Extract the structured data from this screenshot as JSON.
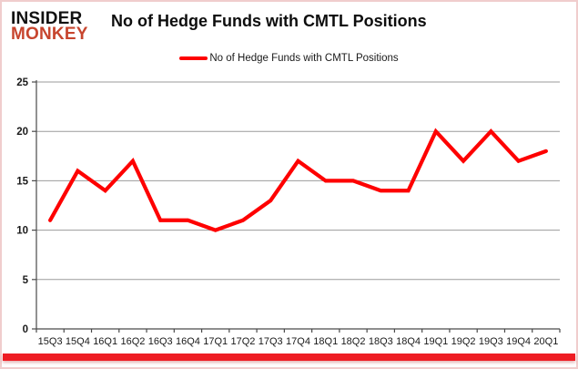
{
  "logo": {
    "line1": "INSIDER",
    "line2": "MONKEY"
  },
  "header": {
    "title": "No of Hedge Funds with CMTL Positions"
  },
  "legend": {
    "label": "No of Hedge Funds with CMTL Positions"
  },
  "colors": {
    "series_line": "#fe0000",
    "gridline": "#9b9b9b",
    "axis": "#4a4a4a",
    "tick_label": "#1a1a1a",
    "logo_black": "#111111",
    "logo_red": "#c7452e",
    "bottom_bar": "#ee1c23",
    "frame_border": "#f0cdcd"
  },
  "chart_data": {
    "type": "line",
    "title": "No of Hedge Funds with CMTL Positions",
    "xlabel": "",
    "ylabel": "",
    "categories": [
      "15Q3",
      "15Q4",
      "16Q1",
      "16Q2",
      "16Q3",
      "16Q4",
      "17Q1",
      "17Q2",
      "17Q3",
      "17Q4",
      "18Q1",
      "18Q2",
      "18Q3",
      "18Q4",
      "19Q1",
      "19Q2",
      "19Q3",
      "19Q4",
      "20Q1"
    ],
    "series": [
      {
        "name": "No of Hedge Funds with CMTL Positions",
        "values": [
          11,
          16,
          14,
          17,
          11,
          11,
          10,
          11,
          13,
          17,
          15,
          15,
          14,
          14,
          20,
          17,
          20,
          17,
          18
        ]
      }
    ],
    "ylim": [
      0,
      25
    ],
    "ytick_interval": 5,
    "yticks": [
      0,
      5,
      10,
      15,
      20,
      25
    ],
    "grid": true,
    "legend_position": "top-center"
  }
}
